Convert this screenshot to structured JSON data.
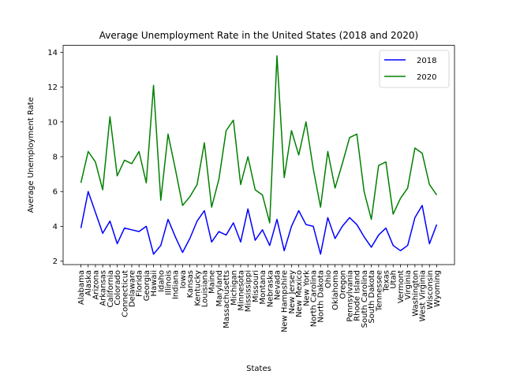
{
  "chart_data": {
    "type": "line",
    "title": "Average Unemployment Rate in the United States (2018 and 2020)",
    "xlabel": "States",
    "ylabel": "Average Unemployment Rate",
    "ylim": [
      1.8,
      14.4
    ],
    "yticks": [
      2,
      4,
      6,
      8,
      10,
      12,
      14
    ],
    "grid": false,
    "legend_position": "top-right",
    "categories": [
      "Alabama",
      "Alaska",
      "Arizona",
      "Arkansas",
      "California",
      "Colorado",
      "Connecticut",
      "Delaware",
      "Florida",
      "Georgia",
      "Hawaii",
      "Idaho",
      "Illinois",
      "Indiana",
      "Iowa",
      "Kansas",
      "Kentucky",
      "Louisiana",
      "Maine",
      "Maryland",
      "Massachusetts",
      "Michigan",
      "Minnesota",
      "Mississippi",
      "Missouri",
      "Montana",
      "Nebraska",
      "Nevada",
      "New Hampshire",
      "New Jersey",
      "New Mexico",
      "New York",
      "North Carolina",
      "North Dakota",
      "Ohio",
      "Oklahoma",
      "Oregon",
      "Pennsylvania",
      "Rhode Island",
      "South Carolina",
      "South Dakota",
      "Tennessee",
      "Texas",
      "Utah",
      "Vermont",
      "Virginia",
      "Washington",
      "West Virginia",
      "Wisconsin",
      "Wyoming"
    ],
    "series": [
      {
        "name": "2018",
        "color": "#0000ff",
        "values": [
          3.9,
          6.0,
          4.8,
          3.6,
          4.3,
          3.0,
          3.9,
          3.8,
          3.7,
          4.0,
          2.4,
          2.9,
          4.4,
          3.4,
          2.5,
          3.3,
          4.3,
          4.9,
          3.1,
          3.7,
          3.5,
          4.2,
          3.1,
          5.0,
          3.2,
          3.8,
          2.9,
          4.4,
          2.6,
          4.0,
          4.9,
          4.1,
          4.0,
          2.4,
          4.5,
          3.3,
          4.0,
          4.5,
          4.1,
          3.4,
          2.8,
          3.5,
          3.9,
          2.9,
          2.6,
          2.9,
          4.5,
          5.2,
          3.0,
          4.1
        ]
      },
      {
        "name": "2020",
        "color": "#008000",
        "values": [
          6.5,
          8.3,
          7.7,
          6.1,
          10.3,
          6.9,
          7.8,
          7.6,
          8.3,
          6.5,
          12.1,
          5.5,
          9.3,
          7.3,
          5.2,
          5.7,
          6.4,
          8.8,
          5.1,
          6.7,
          9.5,
          10.1,
          6.4,
          8.0,
          6.1,
          5.8,
          4.2,
          13.8,
          6.8,
          9.5,
          8.1,
          10.0,
          7.3,
          5.1,
          8.3,
          6.2,
          7.6,
          9.1,
          9.3,
          6.0,
          4.4,
          7.5,
          7.7,
          4.7,
          5.6,
          6.2,
          8.5,
          8.2,
          6.4,
          5.8
        ]
      }
    ]
  }
}
